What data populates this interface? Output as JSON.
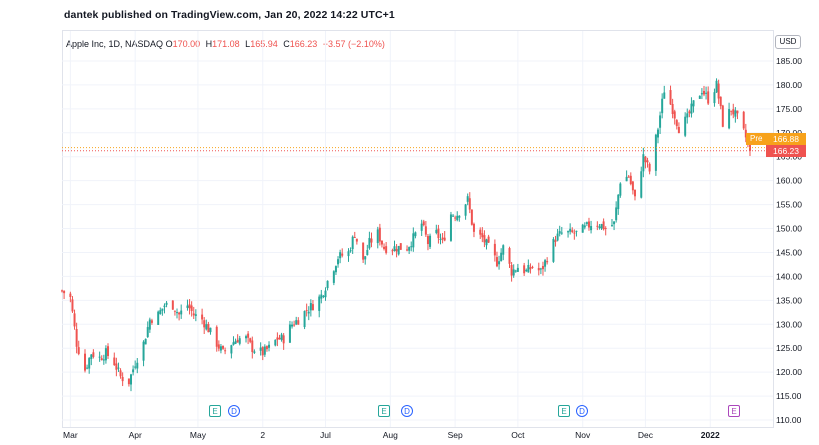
{
  "header": {
    "publisher_line": "dantek published on TradingView.com, Jan 20, 2022 14:22 UTC+1"
  },
  "legend": {
    "symbol": "Apple Inc, 1D, NASDAQ",
    "open_key": "O",
    "open": "170.00",
    "high_key": "H",
    "high": "171.08",
    "low_key": "L",
    "low": "165.94",
    "close_key": "C",
    "close": "166.23",
    "change": "−3.57 (−2.10%)"
  },
  "price_axis": {
    "currency": "USD",
    "pre_label": "Pre",
    "pre_price": "166.88",
    "last_price": "166.23"
  },
  "events": [
    {
      "label": "E",
      "type": "earnings"
    },
    {
      "label": "D",
      "type": "dividend"
    },
    {
      "label": "E",
      "type": "earnings"
    },
    {
      "label": "D",
      "type": "dividend"
    },
    {
      "label": "E",
      "type": "earnings"
    },
    {
      "label": "D",
      "type": "dividend"
    },
    {
      "label": "E",
      "type": "earnings-upcoming"
    }
  ],
  "colors": {
    "up": "#26a69a",
    "down": "#ef5350",
    "pre": "#f7a21b",
    "grid": "#f0f3fa",
    "axis_text": "#131722"
  },
  "chart_data": {
    "type": "candlestick",
    "title": "Apple Inc, 1D, NASDAQ",
    "ylim": [
      110,
      190
    ],
    "yticks": [
      110,
      115,
      120,
      125,
      130,
      135,
      140,
      145,
      150,
      155,
      160,
      165,
      170,
      175,
      180,
      185
    ],
    "ytick_labels": [
      "110.00",
      "115.00",
      "120.00",
      "125.00",
      "130.00",
      "135.00",
      "140.00",
      "145.00",
      "150.00",
      "155.00",
      "160.00",
      "165.00",
      "170.00",
      "175.00",
      "180.00",
      "185.00"
    ],
    "x_tick_labels": [
      "Mar",
      "Apr",
      "May",
      "2",
      "Jul",
      "Aug",
      "Sep",
      "Oct",
      "Nov",
      "Dec",
      "2022"
    ],
    "x_start": "2021-02-25",
    "x_end": "2022-01-31",
    "grid": true,
    "close_series": [
      [
        "2021-02-25",
        137
      ],
      [
        "2021-03-01",
        135.5
      ],
      [
        "2021-03-04",
        126
      ],
      [
        "2021-03-08",
        120.5
      ],
      [
        "2021-03-11",
        124
      ],
      [
        "2021-03-15",
        123
      ],
      [
        "2021-03-18",
        124
      ],
      [
        "2021-03-22",
        122
      ],
      [
        "2021-03-25",
        119
      ],
      [
        "2021-03-29",
        118
      ],
      [
        "2021-04-01",
        122
      ],
      [
        "2021-04-05",
        126
      ],
      [
        "2021-04-08",
        131
      ],
      [
        "2021-04-12",
        132
      ],
      [
        "2021-04-15",
        134
      ],
      [
        "2021-04-19",
        134
      ],
      [
        "2021-04-22",
        132
      ],
      [
        "2021-04-26",
        134
      ],
      [
        "2021-04-29",
        132
      ],
      [
        "2021-05-03",
        131
      ],
      [
        "2021-05-06",
        129
      ],
      [
        "2021-05-10",
        126
      ],
      [
        "2021-05-13",
        124
      ],
      [
        "2021-05-17",
        126
      ],
      [
        "2021-05-20",
        127
      ],
      [
        "2021-05-24",
        127
      ],
      [
        "2021-05-27",
        125
      ],
      [
        "2021-06-01",
        124
      ],
      [
        "2021-06-04",
        125
      ],
      [
        "2021-06-08",
        127
      ],
      [
        "2021-06-11",
        127
      ],
      [
        "2021-06-15",
        130
      ],
      [
        "2021-06-18",
        131
      ],
      [
        "2021-06-22",
        133
      ],
      [
        "2021-06-25",
        134
      ],
      [
        "2021-06-29",
        136
      ],
      [
        "2021-07-02",
        139
      ],
      [
        "2021-07-07",
        144
      ],
      [
        "2021-07-12",
        145
      ],
      [
        "2021-07-15",
        149
      ],
      [
        "2021-07-19",
        143
      ],
      [
        "2021-07-22",
        147
      ],
      [
        "2021-07-26",
        149
      ],
      [
        "2021-07-29",
        146
      ],
      [
        "2021-08-02",
        146
      ],
      [
        "2021-08-05",
        146
      ],
      [
        "2021-08-09",
        146
      ],
      [
        "2021-08-12",
        148
      ],
      [
        "2021-08-16",
        151
      ],
      [
        "2021-08-19",
        147
      ],
      [
        "2021-08-23",
        149
      ],
      [
        "2021-08-26",
        147
      ],
      [
        "2021-08-30",
        153
      ],
      [
        "2021-09-02",
        153
      ],
      [
        "2021-09-07",
        156
      ],
      [
        "2021-09-10",
        149
      ],
      [
        "2021-09-14",
        148
      ],
      [
        "2021-09-17",
        146
      ],
      [
        "2021-09-21",
        143
      ],
      [
        "2021-09-24",
        146
      ],
      [
        "2021-09-28",
        141
      ],
      [
        "2021-10-01",
        142
      ],
      [
        "2021-10-05",
        141
      ],
      [
        "2021-10-08",
        142
      ],
      [
        "2021-10-12",
        141
      ],
      [
        "2021-10-15",
        144
      ],
      [
        "2021-10-19",
        148
      ],
      [
        "2021-10-22",
        149
      ],
      [
        "2021-10-26",
        149
      ],
      [
        "2021-10-29",
        149
      ],
      [
        "2021-11-02",
        150
      ],
      [
        "2021-11-05",
        151
      ],
      [
        "2021-11-09",
        151
      ],
      [
        "2021-11-12",
        150
      ],
      [
        "2021-11-16",
        151
      ],
      [
        "2021-11-19",
        160
      ],
      [
        "2021-11-23",
        161
      ],
      [
        "2021-11-26",
        156
      ],
      [
        "2021-11-30",
        165
      ],
      [
        "2021-12-03",
        162
      ],
      [
        "2021-12-07",
        171
      ],
      [
        "2021-12-10",
        179
      ],
      [
        "2021-12-14",
        175
      ],
      [
        "2021-12-17",
        171
      ],
      [
        "2021-12-21",
        173
      ],
      [
        "2021-12-24",
        176
      ],
      [
        "2021-12-28",
        179
      ],
      [
        "2021-12-31",
        177
      ],
      [
        "2022-01-04",
        180
      ],
      [
        "2022-01-07",
        172
      ],
      [
        "2022-01-11",
        175
      ],
      [
        "2022-01-14",
        173
      ],
      [
        "2022-01-18",
        169
      ],
      [
        "2022-01-20",
        166.23
      ]
    ]
  }
}
